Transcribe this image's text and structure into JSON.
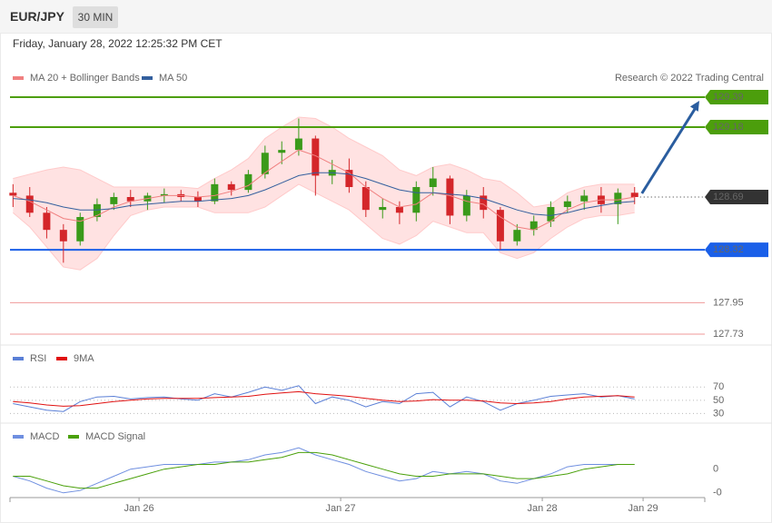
{
  "header": {
    "symbol": "EUR/JPY",
    "interval": "30 MIN",
    "datetime": "Friday, January 28, 2022 12:25:32 PM CET"
  },
  "chart_data": [
    {
      "type": "candlestick",
      "credit": "Research © 2022 Trading Central",
      "x": [
        -0.625,
        -0.542,
        -0.458,
        -0.375,
        -0.292,
        -0.208,
        -0.125,
        -0.042,
        0.042,
        0.125,
        0.208,
        0.292,
        0.375,
        0.458,
        0.542,
        0.625,
        0.708,
        0.792,
        0.875,
        0.958,
        1.042,
        1.125,
        1.208,
        1.292,
        1.375,
        1.458,
        1.542,
        1.625,
        1.708,
        1.792,
        1.875,
        1.958,
        2.042,
        2.125,
        2.208,
        2.292,
        2.375,
        2.458
      ],
      "open": [
        128.72,
        128.7,
        128.58,
        128.46,
        128.38,
        128.55,
        128.64,
        128.69,
        128.66,
        128.7,
        128.71,
        128.69,
        128.66,
        128.78,
        128.74,
        128.85,
        129.0,
        129.02,
        129.1,
        128.84,
        128.88,
        128.76,
        128.6,
        128.62,
        128.58,
        128.76,
        128.82,
        128.56,
        128.7,
        128.6,
        128.38,
        128.46,
        128.52,
        128.62,
        128.66,
        128.7,
        128.64,
        128.72
      ],
      "high": [
        128.78,
        128.76,
        128.62,
        128.5,
        128.58,
        128.68,
        128.72,
        128.74,
        128.72,
        128.75,
        128.74,
        128.73,
        128.82,
        128.8,
        128.88,
        129.05,
        129.08,
        129.24,
        129.12,
        128.95,
        128.96,
        128.8,
        128.68,
        128.66,
        128.8,
        128.9,
        128.84,
        128.74,
        128.76,
        128.62,
        128.5,
        128.56,
        128.66,
        128.7,
        128.74,
        128.76,
        128.75,
        128.76
      ],
      "low": [
        128.62,
        128.55,
        128.4,
        128.23,
        128.35,
        128.52,
        128.6,
        128.62,
        128.6,
        128.65,
        128.66,
        128.62,
        128.64,
        128.7,
        128.72,
        128.82,
        128.92,
        128.98,
        128.7,
        128.78,
        128.72,
        128.55,
        128.54,
        128.5,
        128.52,
        128.7,
        128.5,
        128.52,
        128.54,
        128.32,
        128.35,
        128.42,
        128.48,
        128.58,
        128.6,
        128.58,
        128.5,
        128.64
      ],
      "close": [
        128.7,
        128.58,
        128.46,
        128.38,
        128.55,
        128.64,
        128.69,
        128.66,
        128.7,
        128.71,
        128.69,
        128.66,
        128.78,
        128.74,
        128.85,
        129.0,
        129.02,
        129.1,
        128.84,
        128.88,
        128.76,
        128.6,
        128.62,
        128.58,
        128.76,
        128.82,
        128.56,
        128.7,
        128.6,
        128.38,
        128.46,
        128.52,
        128.62,
        128.66,
        128.7,
        128.64,
        128.72,
        128.69
      ],
      "up_color": "#3a9a1a",
      "down_color": "#d4262a",
      "series": [
        {
          "name": "MA 20 + Bollinger Bands",
          "color": "#f08080",
          "values": [
            128.7,
            128.66,
            128.6,
            128.54,
            128.52,
            128.56,
            128.62,
            128.66,
            128.68,
            128.7,
            128.7,
            128.69,
            128.7,
            128.73,
            128.77,
            128.86,
            128.94,
            129.02,
            128.98,
            128.92,
            128.86,
            128.76,
            128.68,
            128.62,
            128.64,
            128.72,
            128.7,
            128.66,
            128.64,
            128.55,
            128.48,
            128.46,
            128.52,
            128.6,
            128.65,
            128.67,
            128.67,
            128.69
          ],
          "upper": [
            128.82,
            128.85,
            128.88,
            128.9,
            128.88,
            128.82,
            128.76,
            128.76,
            128.76,
            128.76,
            128.76,
            128.75,
            128.82,
            128.88,
            128.96,
            129.1,
            129.18,
            129.25,
            129.24,
            129.18,
            129.1,
            129.04,
            128.98,
            128.88,
            128.84,
            128.9,
            128.92,
            128.88,
            128.82,
            128.8,
            128.72,
            128.62,
            128.64,
            128.72,
            128.76,
            128.78,
            128.78,
            128.78
          ],
          "lower": [
            128.58,
            128.48,
            128.34,
            128.2,
            128.18,
            128.26,
            128.42,
            128.56,
            128.6,
            128.62,
            128.62,
            128.62,
            128.58,
            128.58,
            128.58,
            128.62,
            128.7,
            128.78,
            128.72,
            128.66,
            128.6,
            128.5,
            128.4,
            128.36,
            128.42,
            128.52,
            128.48,
            128.44,
            128.44,
            128.3,
            128.26,
            128.3,
            128.4,
            128.48,
            128.54,
            128.56,
            128.56,
            128.58
          ]
        },
        {
          "name": "MA 50",
          "color": "#34609e",
          "values": [
            128.68,
            128.67,
            128.65,
            128.62,
            128.6,
            128.6,
            128.61,
            128.63,
            128.64,
            128.65,
            128.66,
            128.66,
            128.67,
            128.68,
            128.7,
            128.74,
            128.79,
            128.84,
            128.86,
            128.86,
            128.85,
            128.82,
            128.78,
            128.74,
            128.72,
            128.72,
            128.71,
            128.7,
            128.68,
            128.64,
            128.6,
            128.57,
            128.56,
            128.58,
            128.61,
            128.63,
            128.65,
            128.66
          ]
        }
      ],
      "levels": [
        {
          "value": 129.39,
          "color": "#4c9e0c",
          "style": "box"
        },
        {
          "value": 129.18,
          "color": "#4c9e0c",
          "style": "box"
        },
        {
          "value": 128.32,
          "color": "#1a5fe8",
          "style": "box"
        },
        {
          "value": 127.95,
          "color": "#e02020",
          "style": "text"
        },
        {
          "value": 127.73,
          "color": "#e02020",
          "style": "text"
        }
      ],
      "last_color": "#333333",
      "xlim": [
        -0.64,
        2.806
      ],
      "ylim": [
        127.666,
        129.625
      ]
    },
    {
      "type": "line",
      "series": [
        {
          "name": "RSI",
          "color": "#5a7fd6",
          "values": [
            45,
            40,
            35,
            33,
            48,
            55,
            56,
            52,
            54,
            55,
            52,
            50,
            60,
            55,
            62,
            70,
            65,
            72,
            45,
            55,
            50,
            40,
            48,
            45,
            60,
            62,
            40,
            55,
            48,
            35,
            45,
            50,
            56,
            58,
            60,
            55,
            57,
            52
          ]
        },
        {
          "name": "9MA",
          "color": "#e01010",
          "values": [
            48,
            46,
            43,
            41,
            42,
            45,
            48,
            50,
            52,
            53,
            53,
            53,
            54,
            55,
            56,
            59,
            61,
            63,
            60,
            58,
            56,
            53,
            50,
            48,
            49,
            51,
            50,
            50,
            49,
            46,
            45,
            46,
            48,
            52,
            55,
            56,
            57,
            55
          ]
        }
      ],
      "ylim": [
        21,
        106
      ],
      "yticks": [
        30,
        50,
        70
      ],
      "grid": true
    },
    {
      "type": "line",
      "series": [
        {
          "name": "MACD",
          "color": "#6f8fe0",
          "values": [
            -0.03,
            -0.05,
            -0.08,
            -0.1,
            -0.09,
            -0.06,
            -0.03,
            0.0,
            0.01,
            0.02,
            0.02,
            0.02,
            0.03,
            0.03,
            0.04,
            0.06,
            0.07,
            0.09,
            0.06,
            0.04,
            0.02,
            -0.01,
            -0.03,
            -0.05,
            -0.04,
            -0.01,
            -0.02,
            -0.01,
            -0.02,
            -0.05,
            -0.06,
            -0.04,
            -0.02,
            0.01,
            0.02,
            0.02,
            0.02,
            0.02
          ]
        },
        {
          "name": "MACD Signal",
          "color": "#4aa00a",
          "values": [
            -0.03,
            -0.03,
            -0.05,
            -0.07,
            -0.08,
            -0.08,
            -0.06,
            -0.04,
            -0.02,
            0.0,
            0.01,
            0.02,
            0.02,
            0.03,
            0.03,
            0.04,
            0.05,
            0.07,
            0.07,
            0.06,
            0.04,
            0.02,
            0.0,
            -0.02,
            -0.03,
            -0.03,
            -0.02,
            -0.02,
            -0.02,
            -0.03,
            -0.04,
            -0.04,
            -0.03,
            -0.02,
            0.0,
            0.01,
            0.02,
            0.02
          ]
        }
      ],
      "ylim": [
        -0.12,
        0.11
      ],
      "yticks": [
        0,
        {
          "value": -0.1,
          "label": "-0"
        }
      ],
      "xticks": [
        {
          "value": 0,
          "label": "Jan 26"
        },
        {
          "value": 1,
          "label": "Jan 27"
        },
        {
          "value": 2,
          "label": "Jan 28"
        },
        {
          "value": 2.5,
          "label": "Jan 29"
        }
      ]
    }
  ]
}
